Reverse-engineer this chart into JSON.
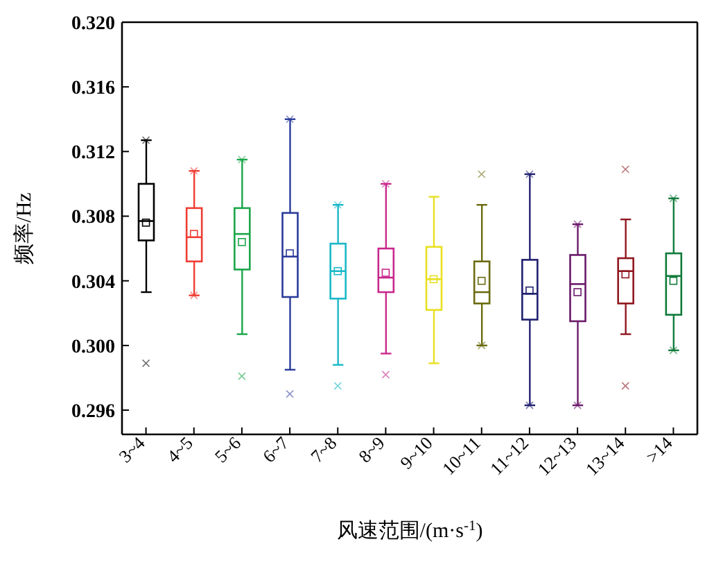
{
  "chart_data": {
    "type": "box",
    "xlabel": "风速范围/(m·s$^{-1}$)",
    "ylabel": "频率/Hz",
    "categories": [
      "3~4",
      "4~5",
      "5~6",
      "6~7",
      "7~8",
      "8~9",
      "9~10",
      "10~11",
      "11~12",
      "12~13",
      "13~14",
      ">14"
    ],
    "colors": [
      "#000000",
      "#f03c32",
      "#1aa64a",
      "#2a3a9a",
      "#1ab8c8",
      "#c8288c",
      "#e8e020",
      "#6b6b10",
      "#202070",
      "#6a1a6a",
      "#901820",
      "#107a3a"
    ],
    "boxes": [
      {
        "low": 0.3033,
        "q1": 0.3065,
        "median": 0.3077,
        "q3": 0.31,
        "high": 0.3127,
        "mean": 0.3076,
        "outliers": [
          0.2989,
          0.3127
        ]
      },
      {
        "low": 0.3031,
        "q1": 0.3052,
        "median": 0.3067,
        "q3": 0.3085,
        "high": 0.3108,
        "mean": 0.3069,
        "outliers": [
          0.3031,
          0.3108
        ]
      },
      {
        "low": 0.3007,
        "q1": 0.3047,
        "median": 0.3069,
        "q3": 0.3085,
        "high": 0.3115,
        "mean": 0.3064,
        "outliers": [
          0.2981,
          0.3115
        ]
      },
      {
        "low": 0.2985,
        "q1": 0.303,
        "median": 0.3055,
        "q3": 0.3082,
        "high": 0.314,
        "mean": 0.3057,
        "outliers": [
          0.297,
          0.314
        ]
      },
      {
        "low": 0.2988,
        "q1": 0.3029,
        "median": 0.3046,
        "q3": 0.3063,
        "high": 0.3087,
        "mean": 0.3046,
        "outliers": [
          0.2975,
          0.3087
        ]
      },
      {
        "low": 0.2995,
        "q1": 0.3033,
        "median": 0.3042,
        "q3": 0.306,
        "high": 0.31,
        "mean": 0.3045,
        "outliers": [
          0.2982,
          0.31
        ]
      },
      {
        "low": 0.2989,
        "q1": 0.3022,
        "median": 0.3041,
        "q3": 0.3061,
        "high": 0.3092,
        "mean": 0.3041
      },
      {
        "low": 0.3,
        "q1": 0.3026,
        "median": 0.3033,
        "q3": 0.3052,
        "high": 0.3087,
        "mean": 0.304,
        "outliers": [
          0.3,
          0.3106
        ]
      },
      {
        "low": 0.2963,
        "q1": 0.3016,
        "median": 0.3032,
        "q3": 0.3053,
        "high": 0.3106,
        "mean": 0.3034,
        "outliers": [
          0.2963,
          0.3106
        ]
      },
      {
        "low": 0.2963,
        "q1": 0.3015,
        "median": 0.3038,
        "q3": 0.3056,
        "high": 0.3075,
        "mean": 0.3033,
        "outliers": [
          0.2963,
          0.3075
        ]
      },
      {
        "low": 0.3007,
        "q1": 0.3026,
        "median": 0.3046,
        "q3": 0.3054,
        "high": 0.3078,
        "mean": 0.3044,
        "outliers": [
          0.2975,
          0.3109
        ]
      },
      {
        "low": 0.2997,
        "q1": 0.3019,
        "median": 0.3043,
        "q3": 0.3057,
        "high": 0.3091,
        "mean": 0.304,
        "outliers": [
          0.2997,
          0.3091
        ]
      }
    ],
    "ylim": [
      0.2945,
      0.32
    ],
    "yticks": [
      0.296,
      {
        "value": 0.3,
        "label": "0.300"
      },
      0.304,
      0.308,
      0.312,
      0.316,
      {
        "value": 0.32,
        "label": "0.320"
      }
    ],
    "grid": false,
    "legend": false
  }
}
